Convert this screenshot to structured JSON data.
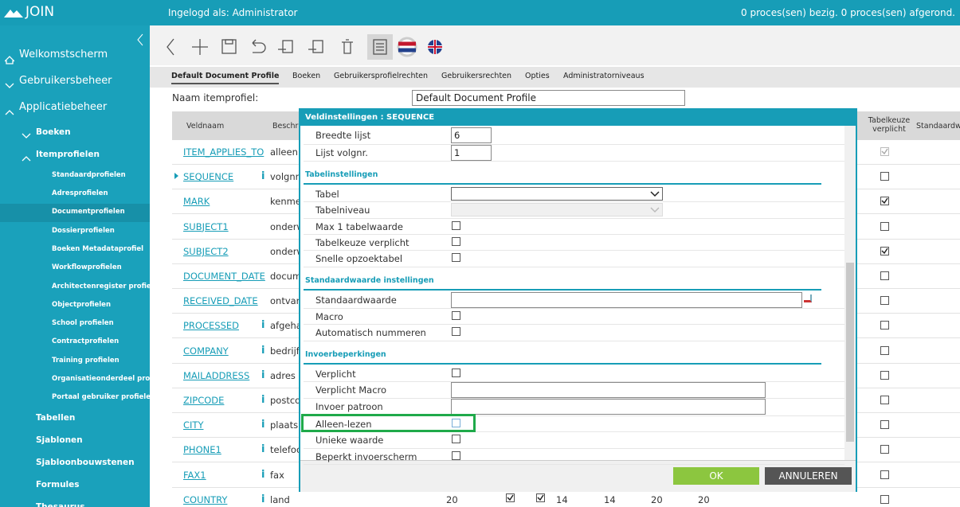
{
  "header": {
    "logo": "JOIN",
    "user": "Ingelogd als: Administrator",
    "status": "0 proces(sen) bezig. 0 proces(sen) afgerond."
  },
  "sidebar": {
    "items": [
      {
        "label": "Welkomstscherm",
        "level": 0,
        "icon": "home"
      },
      {
        "label": "Gebruikersbeheer",
        "level": 0,
        "icon": "down"
      },
      {
        "label": "Applicatiebeheer",
        "level": 0,
        "icon": "up"
      },
      {
        "label": "Boeken",
        "level": 1,
        "icon": "down"
      },
      {
        "label": "Itemprofielen",
        "level": 1,
        "icon": "up"
      },
      {
        "label": "Standaardprofielen",
        "level": 2
      },
      {
        "label": "Adresprofielen",
        "level": 2
      },
      {
        "label": "Documentprofielen",
        "level": 2,
        "selected": true
      },
      {
        "label": "Dossierprofielen",
        "level": 2
      },
      {
        "label": "Boeken Metadataprofiel",
        "level": 2
      },
      {
        "label": "Workflowprofielen",
        "level": 2
      },
      {
        "label": "Architectenregister profiel",
        "level": 2
      },
      {
        "label": "Objectprofielen",
        "level": 2
      },
      {
        "label": "School profielen",
        "level": 2
      },
      {
        "label": "Contractprofielen",
        "level": 2
      },
      {
        "label": "Training profielen",
        "level": 2
      },
      {
        "label": "Organisatieonderdeel profielen",
        "level": 2
      },
      {
        "label": "Portaal gebruiker profielen",
        "level": 2
      },
      {
        "label": "Tabellen",
        "level": 1
      },
      {
        "label": "Sjablonen",
        "level": 1
      },
      {
        "label": "Sjabloonbouwstenen",
        "level": 1
      },
      {
        "label": "Formules",
        "level": 1
      },
      {
        "label": "Thesaurus",
        "level": 1
      }
    ]
  },
  "tabs": [
    "Default Document Profile",
    "Boeken",
    "Gebruikersprofielrechten",
    "Gebruikersrechten",
    "Opties",
    "Administratorniveaus"
  ],
  "form": {
    "label": "Naam itemprofiel:",
    "value": "Default Document Profile"
  },
  "table": {
    "headers": [
      "Veldnaam",
      "Beschr",
      "Tabelkeuze verplicht",
      "Standaardwa"
    ],
    "rows": [
      {
        "name": "ITEM_APPLIES_TO",
        "desc": "alleen a",
        "checked": true,
        "disabled": true
      },
      {
        "name": "SEQUENCE",
        "desc": "volgnr.",
        "info": "i",
        "current": true,
        "checked": false
      },
      {
        "name": "MARK",
        "desc": "kenme",
        "checked": true
      },
      {
        "name": "SUBJECT1",
        "desc": "onderw",
        "checked": false
      },
      {
        "name": "SUBJECT2",
        "desc": "onderw",
        "checked": true
      },
      {
        "name": "DOCUMENT_DATE",
        "desc": "docum",
        "checked": false
      },
      {
        "name": "RECEIVED_DATE",
        "desc": "ontvan",
        "checked": false
      },
      {
        "name": "PROCESSED",
        "desc": "afgeha",
        "info": "i",
        "checked": false
      },
      {
        "name": "COMPANY",
        "desc": "bedrijfs",
        "info": "i",
        "checked": false
      },
      {
        "name": "MAILADDRESS",
        "desc": "adres",
        "info": "i",
        "checked": false
      },
      {
        "name": "ZIPCODE",
        "desc": "postco",
        "info": "i",
        "checked": false
      },
      {
        "name": "CITY",
        "desc": "plaats",
        "info": "i",
        "checked": false
      },
      {
        "name": "PHONE1",
        "desc": "telefoo",
        "info": "i",
        "checked": false
      },
      {
        "name": "FAX1",
        "desc": "fax",
        "info": "i",
        "checked": false
      },
      {
        "name": "COUNTRY",
        "desc": "land",
        "info": "i",
        "checked": false,
        "extra": [
          20,
          14,
          14,
          20,
          20
        ]
      }
    ]
  },
  "dialog": {
    "title": "Veldinstellingen : SEQUENCE",
    "items": [
      {
        "label": "Breedte lijst",
        "control": "text-small",
        "value": "6"
      },
      {
        "label": "Lijst volgnr.",
        "control": "text-small",
        "value": "1"
      },
      {
        "section": "Tabelinstellingen"
      },
      {
        "label": "Tabel",
        "control": "select"
      },
      {
        "label": "Tabelniveau",
        "control": "select-disabled"
      },
      {
        "label": "Max 1 tabelwaarde",
        "control": "checkbox"
      },
      {
        "label": "Tabelkeuze verplicht",
        "control": "checkbox"
      },
      {
        "label": "Snelle opzoektabel",
        "control": "checkbox"
      },
      {
        "section": "Standaardwaarde instellingen"
      },
      {
        "label": "Standaardwaarde",
        "control": "text-wide"
      },
      {
        "label": "Macro",
        "control": "checkbox"
      },
      {
        "label": "Automatisch nummeren",
        "control": "checkbox"
      },
      {
        "section": "Invoerbeperkingen"
      },
      {
        "label": "Verplicht",
        "control": "checkbox"
      },
      {
        "label": "Verplicht Macro",
        "control": "text"
      },
      {
        "label": "Invoer patroon",
        "control": "text"
      },
      {
        "label": "Alleen-lezen",
        "control": "checkbox",
        "highlighted": true
      },
      {
        "label": "Unieke waarde",
        "control": "checkbox"
      },
      {
        "label": "Beperkt invoerscherm",
        "control": "checkbox"
      }
    ],
    "ok": "OK",
    "cancel": "ANNULEREN"
  }
}
